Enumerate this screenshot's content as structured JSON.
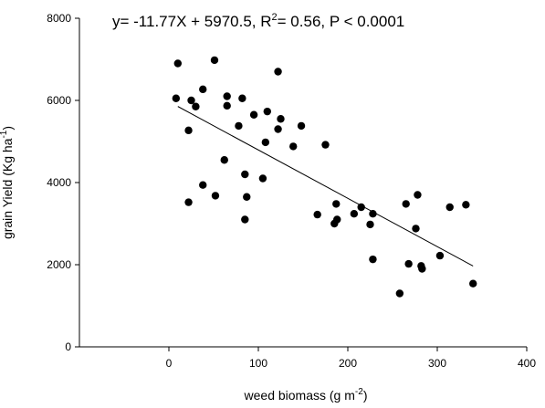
{
  "chart_data": {
    "type": "scatter",
    "title": "",
    "equation": {
      "main": "y= -11.77X + 5970.5, R",
      "sup": "2",
      "rest": "= 0.56, P < 0.0001"
    },
    "xlabel": {
      "main": "weed biomass (g m",
      "sup": "-2",
      "end": ")"
    },
    "ylabel": {
      "main": "grain Yield (Kg ha",
      "sup": "-1",
      "end": ")"
    },
    "xlim": [
      -100,
      400
    ],
    "ylim": [
      0,
      8000
    ],
    "xticks": [
      0,
      100,
      200,
      300,
      400
    ],
    "yticks": [
      0,
      2000,
      4000,
      6000,
      8000
    ],
    "regression": {
      "slope": -11.77,
      "intercept": 5970.5,
      "x_range": [
        10,
        340
      ]
    },
    "points": [
      [
        10,
        6900
      ],
      [
        8,
        6050
      ],
      [
        22,
        5270
      ],
      [
        25,
        6000
      ],
      [
        30,
        5850
      ],
      [
        38,
        6270
      ],
      [
        22,
        3520
      ],
      [
        38,
        3940
      ],
      [
        51,
        6980
      ],
      [
        52,
        3680
      ],
      [
        62,
        4550
      ],
      [
        65,
        6100
      ],
      [
        65,
        5870
      ],
      [
        78,
        5380
      ],
      [
        82,
        6050
      ],
      [
        85,
        3100
      ],
      [
        85,
        4200
      ],
      [
        87,
        3650
      ],
      [
        95,
        5650
      ],
      [
        105,
        4100
      ],
      [
        108,
        4980
      ],
      [
        110,
        5730
      ],
      [
        122,
        6700
      ],
      [
        122,
        5300
      ],
      [
        125,
        5550
      ],
      [
        139,
        4880
      ],
      [
        148,
        5380
      ],
      [
        175,
        4920
      ],
      [
        166,
        3220
      ],
      [
        185,
        3000
      ],
      [
        187,
        3480
      ],
      [
        188,
        3100
      ],
      [
        207,
        3240
      ],
      [
        215,
        3400
      ],
      [
        225,
        2980
      ],
      [
        228,
        3240
      ],
      [
        228,
        2130
      ],
      [
        258,
        1300
      ],
      [
        265,
        3480
      ],
      [
        268,
        2020
      ],
      [
        276,
        2880
      ],
      [
        278,
        3700
      ],
      [
        282,
        1970
      ],
      [
        283,
        1900
      ],
      [
        303,
        2220
      ],
      [
        314,
        3400
      ],
      [
        332,
        3460
      ],
      [
        340,
        1540
      ]
    ]
  }
}
